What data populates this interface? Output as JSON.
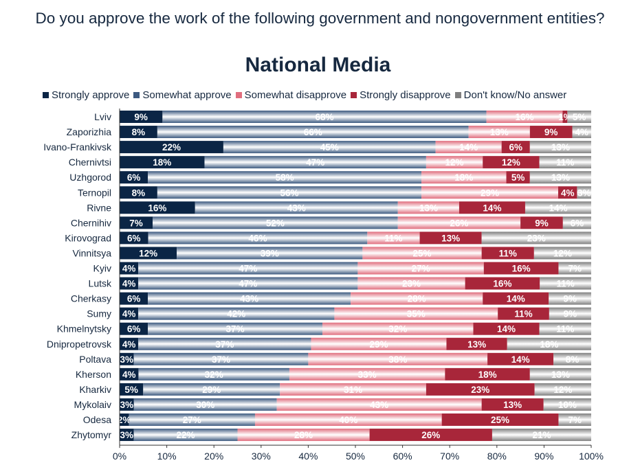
{
  "header": {
    "question": "Do you approve the work of the following government and nongovernment entities?"
  },
  "chart_data": {
    "type": "bar",
    "orientation": "horizontal",
    "stacked": "percent",
    "title": "National Media",
    "legend_position": "top",
    "categories": [
      "Lviv",
      "Zaporizhia",
      "Ivano-Frankivsk",
      "Chernivtsi",
      "Uzhgorod",
      "Ternopil",
      "Rivne",
      "Chernihiv",
      "Kirovograd",
      "Vinnitsya",
      "Kyiv",
      "Lutsk",
      "Cherkasy",
      "Sumy",
      "Khmelnytsky",
      "Dnipropetrovsk",
      "Poltava",
      "Kherson",
      "Kharkiv",
      "Mykolaiv",
      "Odesa",
      "Zhytomyr"
    ],
    "series": [
      {
        "name": "Strongly approve",
        "color": "#0b2545",
        "values": [
          9,
          8,
          22,
          18,
          6,
          8,
          16,
          7,
          6,
          12,
          4,
          4,
          6,
          4,
          6,
          4,
          3,
          4,
          5,
          3,
          2,
          3
        ]
      },
      {
        "name": "Somewhat approve",
        "color": "#3d5a80",
        "values": [
          68,
          66,
          45,
          47,
          58,
          56,
          43,
          52,
          46,
          39,
          47,
          47,
          43,
          42,
          37,
          37,
          37,
          32,
          29,
          30,
          27,
          22
        ]
      },
      {
        "name": "Somewhat disapprove",
        "color": "#e06e7e",
        "values": [
          16,
          13,
          14,
          12,
          18,
          29,
          13,
          26,
          11,
          25,
          27,
          23,
          28,
          35,
          32,
          29,
          38,
          33,
          31,
          43,
          40,
          28
        ]
      },
      {
        "name": "Strongly disapprove",
        "color": "#a8263a",
        "values": [
          1,
          9,
          6,
          12,
          5,
          4,
          14,
          9,
          13,
          11,
          16,
          16,
          14,
          11,
          14,
          13,
          14,
          18,
          23,
          13,
          25,
          26
        ]
      },
      {
        "name": "Don't know/No answer",
        "color": "#7f7f7f",
        "values": [
          5,
          4,
          13,
          11,
          13,
          3,
          14,
          6,
          23,
          12,
          7,
          11,
          9,
          9,
          11,
          18,
          8,
          13,
          12,
          10,
          7,
          21
        ]
      }
    ],
    "xlim": [
      0,
      100
    ],
    "x_ticks": [
      "0%",
      "10%",
      "20%",
      "30%",
      "40%",
      "50%",
      "60%",
      "70%",
      "80%",
      "90%",
      "100%"
    ],
    "grid": false
  }
}
